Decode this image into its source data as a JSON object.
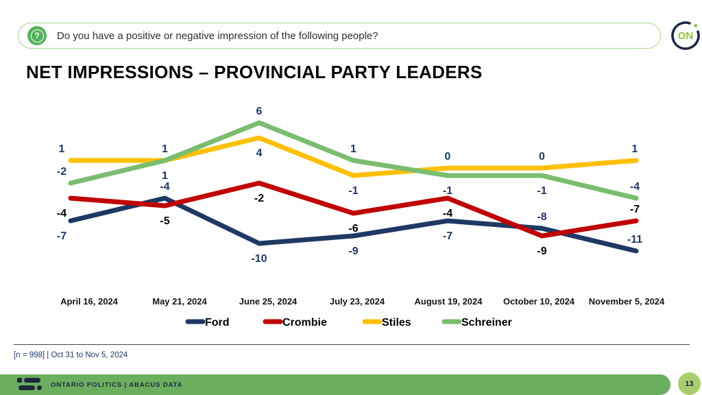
{
  "banner": {
    "question": "Do you have a positive or negative impression of the following people?",
    "logo_text": "ON"
  },
  "title": "NET IMPRESSIONS – PROVINCIAL PARTY LEADERS",
  "chart_data": {
    "type": "line",
    "title": "NET IMPRESSIONS – PROVINCIAL PARTY LEADERS",
    "categories": [
      "April 16, 2024",
      "May 21, 2024",
      "June 25, 2024",
      "July 23, 2024",
      "August 19, 2024",
      "October 10, 2024",
      "November 5, 2024"
    ],
    "series": [
      {
        "name": "Ford",
        "color": "#1f3864",
        "label_color": "#1f3864",
        "values": [
          -7,
          -4,
          -10,
          -9,
          -7,
          -8,
          -11
        ],
        "label_positions": [
          "below",
          "above",
          "below",
          "below",
          "below",
          "above",
          "above"
        ]
      },
      {
        "name": "Crombie",
        "color": "#c00000",
        "label_color": "#000000",
        "values": [
          -4,
          -5,
          -2,
          -6,
          -4,
          -9,
          -7
        ],
        "label_positions": [
          "below",
          "below",
          "below",
          "below",
          "below",
          "below",
          "above"
        ]
      },
      {
        "name": "Stiles",
        "color": "#ffc000",
        "label_color": "#1f3864",
        "values": [
          1,
          1,
          4,
          -1,
          0,
          0,
          1
        ],
        "label_positions": [
          "above",
          "above",
          "below",
          "below",
          "above",
          "above",
          "above"
        ]
      },
      {
        "name": "Schreiner",
        "color": "#7abd6e",
        "label_color": "#1f3864",
        "values": [
          -2,
          1,
          6,
          1,
          -1,
          -1,
          -4
        ],
        "label_positions": [
          "above",
          "below",
          "above",
          "above",
          "below",
          "below",
          "above"
        ]
      }
    ],
    "xlabel": "",
    "ylabel": "",
    "ylim": [
      -12,
      7
    ],
    "grid": false,
    "data_labels": true,
    "legend_position": "bottom"
  },
  "footnote": "[n = 998] | Oct 31 to Nov 5, 2024",
  "footer": {
    "text": "ONTARIO POLITICS  |  ABACUS DATA",
    "page_number": "13"
  },
  "colors": {
    "accent_green": "#6bae5f",
    "light_green_badge": "#a9ce6e",
    "banner_border_green": "#a6d388",
    "icon_green": "#54b25b",
    "logo_green": "#8cc63e",
    "navy": "#1f3864"
  }
}
